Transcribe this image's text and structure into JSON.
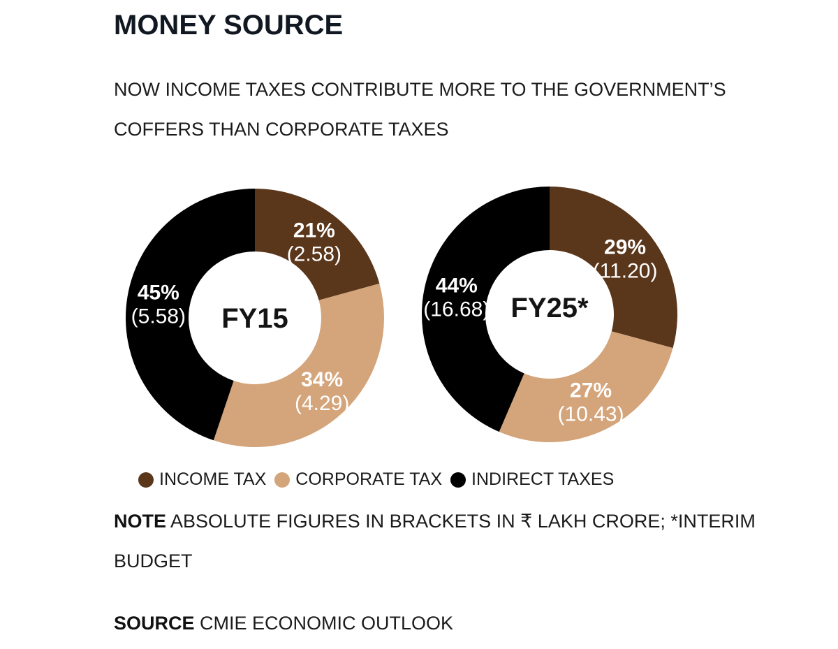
{
  "title": "MONEY SOURCE",
  "subtitle": "NOW INCOME TAXES CONTRIBUTE MORE TO THE GOVERNMENT’S COFFERS THAN CORPORATE TAXES",
  "colors": {
    "income_tax": "#5a361b",
    "corporate_tax": "#d4a47a",
    "indirect_taxes": "#000000",
    "label_on_dark": "#ffffff"
  },
  "legend": [
    {
      "label": "INCOME TAX",
      "color": "#5a361b"
    },
    {
      "label": "CORPORATE TAX",
      "color": "#d4a47a"
    },
    {
      "label": "INDIRECT TAXES",
      "color": "#000000"
    }
  ],
  "note": {
    "bold": "NOTE",
    "text": " ABSOLUTE FIGURES IN BRACKETS IN ₹ LAKH CRORE; *INTERIM BUDGET"
  },
  "source": {
    "bold": "SOURCE",
    "text": " CMIE ECONOMIC OUTLOOK"
  },
  "chart_data": [
    {
      "type": "pie",
      "title": "FY15",
      "categories": [
        "INCOME TAX",
        "CORPORATE TAX",
        "INDIRECT TAXES"
      ],
      "values": [
        2.58,
        4.29,
        5.58
      ],
      "percentages": [
        21,
        34,
        45
      ],
      "labels": [
        {
          "pct": "21%",
          "amount": "(2.58)"
        },
        {
          "pct": "34%",
          "amount": "(4.29)"
        },
        {
          "pct": "45%",
          "amount": "(5.58)"
        }
      ]
    },
    {
      "type": "pie",
      "title": "FY25*",
      "categories": [
        "INCOME TAX",
        "CORPORATE TAX",
        "INDIRECT TAXES"
      ],
      "values": [
        11.2,
        10.43,
        16.68
      ],
      "percentages": [
        29,
        27,
        44
      ],
      "labels": [
        {
          "pct": "29%",
          "amount": "(11.20)"
        },
        {
          "pct": "27%",
          "amount": "(10.43)"
        },
        {
          "pct": "44%",
          "amount": "(16.68)"
        }
      ]
    }
  ]
}
